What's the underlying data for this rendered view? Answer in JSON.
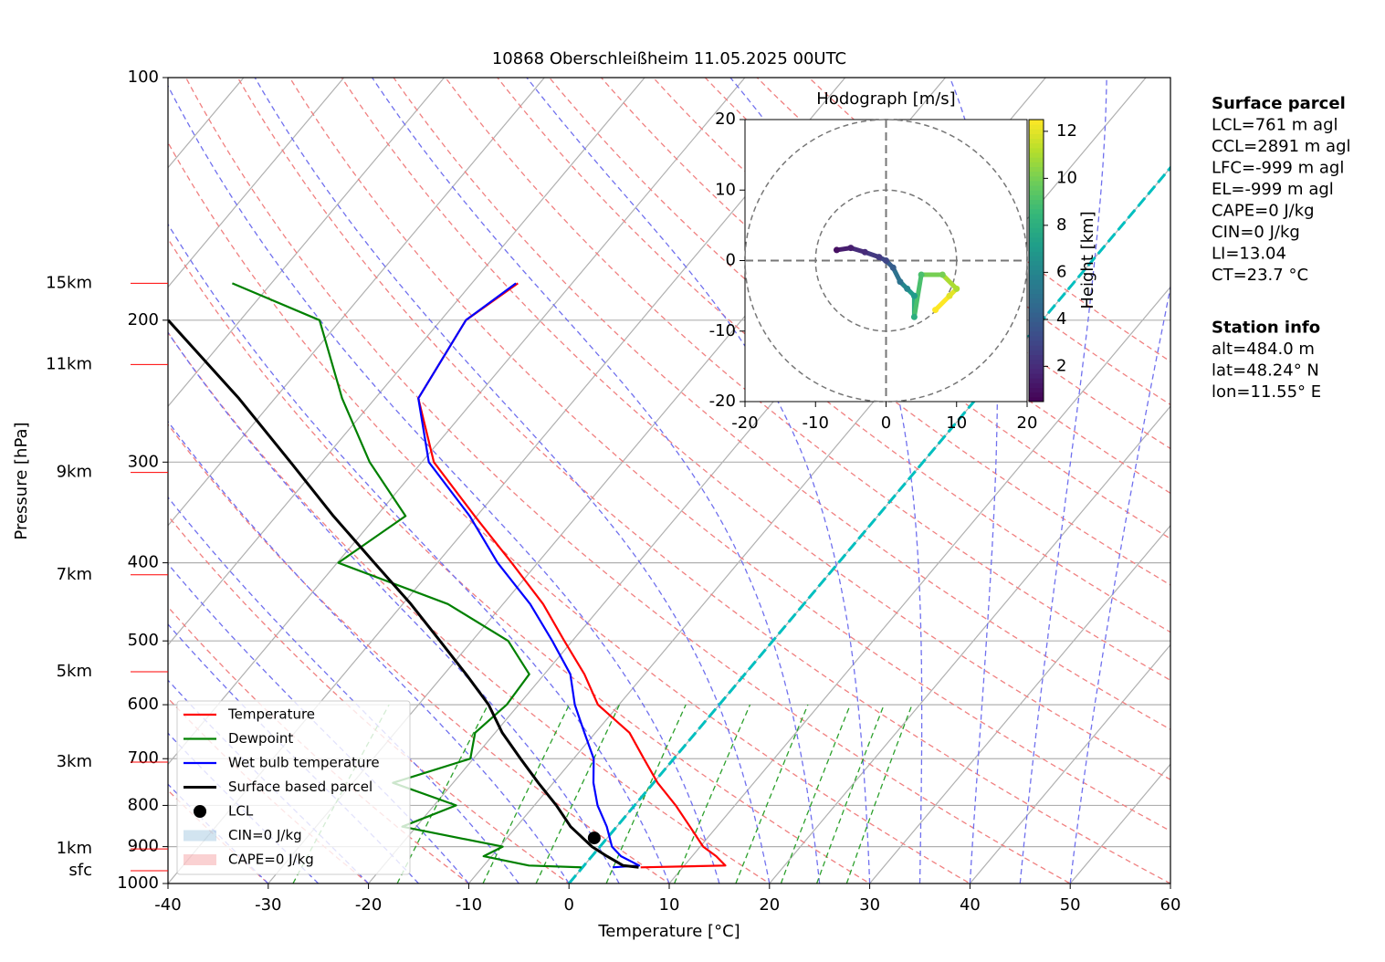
{
  "chart_data": {
    "type": "skewt",
    "title": "10868 Oberschleißheim 11.05.2025 00UTC",
    "xlabel": "Temperature [°C]",
    "ylabel": "Pressure [hPa]",
    "xlim": [
      -40,
      60
    ],
    "xticks": [
      -40,
      -30,
      -20,
      -10,
      0,
      10,
      20,
      30,
      40,
      50,
      60
    ],
    "ylim": [
      1000,
      100
    ],
    "yticks": [
      100,
      200,
      300,
      400,
      500,
      600,
      700,
      800,
      900,
      1000
    ],
    "log_y": true,
    "grid": true,
    "pressure": [
      955,
      950,
      925,
      900,
      850,
      800,
      750,
      700,
      650,
      600,
      550,
      500,
      450,
      400,
      350,
      300,
      250,
      200,
      180
    ],
    "series": [
      {
        "name": "Temperature",
        "color": "#ff0000",
        "values": [
          5.8,
          14.1,
          12.4,
          10.3,
          7.3,
          4.1,
          0.4,
          -3.0,
          -6.6,
          -12.1,
          -16.0,
          -20.8,
          -26.0,
          -32.6,
          -40.2,
          -48.8,
          -55.7,
          -57.5,
          -55.4
        ]
      },
      {
        "name": "Dewpoint",
        "color": "#008000",
        "values": [
          -0.1,
          -5.5,
          -10.8,
          -9.7,
          -21.4,
          -17.8,
          -26.0,
          -20.3,
          -22.0,
          -21.2,
          -21.5,
          -26.4,
          -35.5,
          -49.9,
          -47.1,
          -55.2,
          -63.3,
          -72.1,
          -83.9
        ]
      },
      {
        "name": "Wet bulb temperature",
        "color": "#0000ff",
        "values": [
          3.0,
          5.5,
          2.9,
          1.2,
          -1.0,
          -3.7,
          -6.0,
          -8.0,
          -11.1,
          -14.4,
          -17.4,
          -22.0,
          -27.3,
          -34.0,
          -40.7,
          -49.3,
          -55.7,
          -57.5,
          -55.6
        ]
      },
      {
        "name": "Surface based parcel",
        "color": "#000000",
        "values": [
          5.6,
          3.9,
          1.5,
          -0.8,
          -4.6,
          -7.8,
          -11.5,
          -15.3,
          -19.3,
          -23.0,
          -27.8,
          -33.2,
          -39.2,
          -46.3,
          -54.3,
          -63.1,
          -73.6,
          -87.2,
          null
        ]
      }
    ],
    "lcl": {
      "name": "LCL",
      "color": "#000000",
      "pressure": 878,
      "temperature": -1.3
    },
    "shading": [
      {
        "name": "CIN=0 J/kg",
        "color": "#1f77b4"
      },
      {
        "name": "CAPE=0 J/kg",
        "color": "#e41a1c"
      }
    ],
    "height_labels": {
      "color": "#ff0000",
      "labels": [
        "15km",
        "11km",
        "9km",
        "7km",
        "5km",
        "3km",
        "1km",
        "sfc"
      ],
      "pressure": [
        180,
        227,
        309,
        414,
        546,
        707,
        906,
        964
      ]
    },
    "hodograph": {
      "title": "Hodograph [m/s]",
      "xlim": [
        -20,
        20
      ],
      "ylim": [
        -20,
        20
      ],
      "xticks": [
        -20,
        -10,
        0,
        10,
        20
      ],
      "yticks": [
        -20,
        -10,
        0,
        10,
        20
      ],
      "rings": [
        10,
        20
      ],
      "u": [
        -7,
        -5,
        -3,
        -1,
        0,
        1,
        2,
        3,
        4,
        4,
        5,
        8,
        10,
        9,
        7
      ],
      "v": [
        1.5,
        1.8,
        1.2,
        0.5,
        0,
        -1,
        -3,
        -4,
        -5,
        -8,
        -2,
        -2,
        -4,
        -5,
        -7
      ],
      "height": [
        1,
        1.5,
        2,
        2.5,
        3,
        4,
        5,
        6,
        7,
        8,
        9,
        10,
        11,
        12,
        12.5
      ],
      "colorbar": {
        "label": "Height [km]",
        "clim": [
          0.5,
          12.5
        ],
        "ticks": [
          2,
          4,
          6,
          8,
          10,
          12
        ]
      }
    },
    "surface_parcel": {
      "title": "Surface parcel",
      "lines": [
        "LCL=761 m agl",
        "CCL=2891 m agl",
        "LFC=-999 m agl",
        "EL=-999 m agl",
        "CAPE=0 J/kg",
        "CIN=0 J/kg",
        "LI=13.04",
        "CT=23.7 °C"
      ]
    },
    "station_info": {
      "title": "Station info",
      "lines": [
        "alt=484.0 m",
        "lat=48.24° N",
        "lon=11.55° E"
      ]
    }
  }
}
